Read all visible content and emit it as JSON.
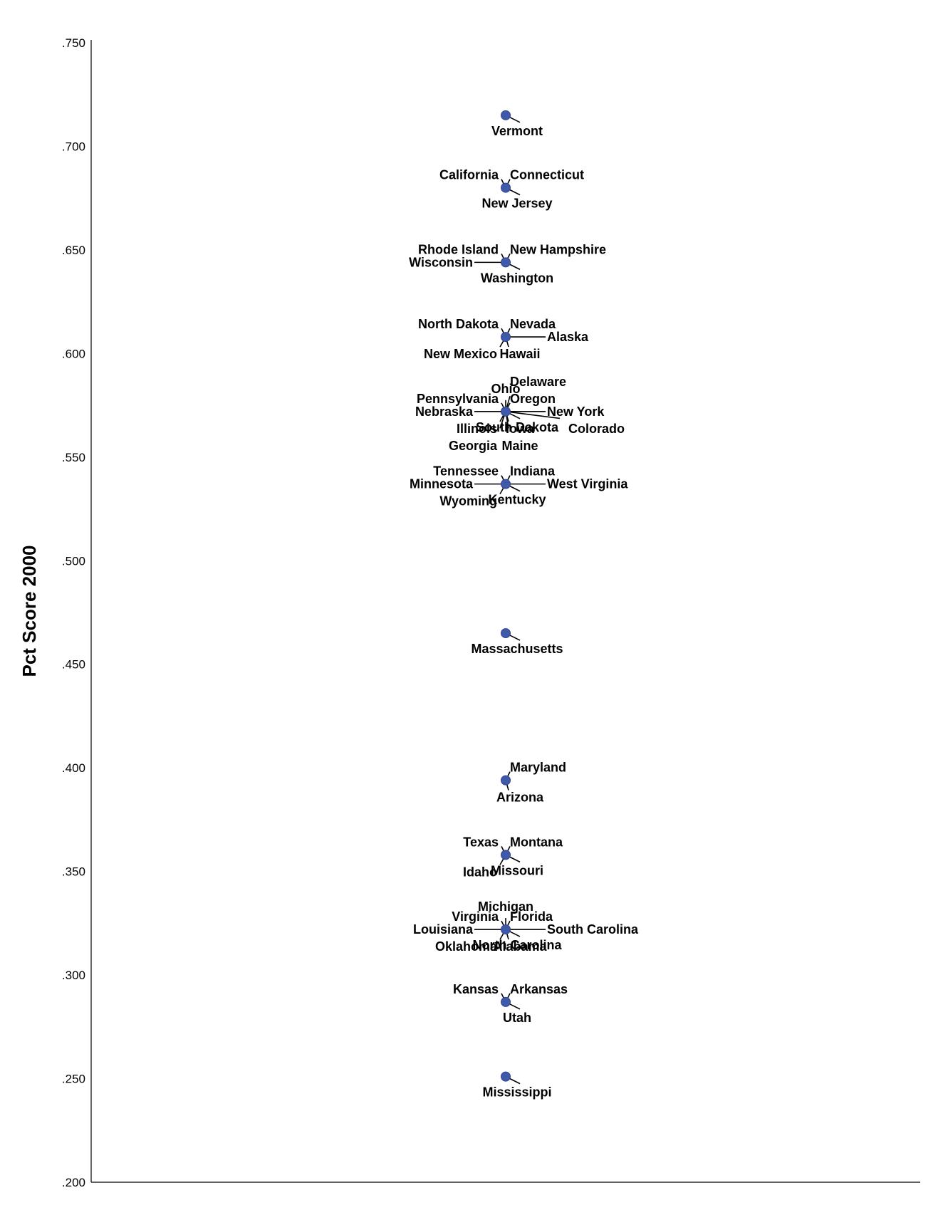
{
  "chart_data": {
    "type": "scatter",
    "title": "",
    "xlabel": "",
    "ylabel": "Pct Score 2000",
    "ylim": [
      0.2,
      0.75
    ],
    "yticks": [
      ".750",
      ".700",
      ".650",
      ".600",
      ".550",
      ".500",
      ".450",
      ".400",
      ".350",
      ".300",
      ".250",
      ".200"
    ],
    "grid": false,
    "marker_color": "#3f5aa8",
    "points": [
      {
        "y": 0.715,
        "labels": [
          {
            "text": "Vermont",
            "pos": "br"
          }
        ]
      },
      {
        "y": 0.68,
        "labels": [
          {
            "text": "California",
            "pos": "tl"
          },
          {
            "text": "Connecticut",
            "pos": "tr"
          },
          {
            "text": "New Jersey",
            "pos": "br"
          }
        ]
      },
      {
        "y": 0.644,
        "labels": [
          {
            "text": "Rhode Island",
            "pos": "tl"
          },
          {
            "text": "New Hampshire",
            "pos": "tr"
          },
          {
            "text": "Wisconsin",
            "pos": "l"
          },
          {
            "text": "Washington",
            "pos": "br"
          }
        ]
      },
      {
        "y": 0.608,
        "labels": [
          {
            "text": "North Dakota",
            "pos": "tl"
          },
          {
            "text": "Nevada",
            "pos": "tr"
          },
          {
            "text": "New Mexico",
            "pos": "bl"
          },
          {
            "text": "Hawaii",
            "pos": "b"
          },
          {
            "text": "Alaska",
            "pos": "r"
          }
        ]
      },
      {
        "y": 0.572,
        "labels": [
          {
            "text": "Pennsylvania",
            "pos": "tl"
          },
          {
            "text": "Oregon",
            "pos": "tr"
          },
          {
            "text": "Ohio",
            "pos": "t"
          },
          {
            "text": "Delaware",
            "pos": "tr"
          },
          {
            "text": "New York",
            "pos": "r"
          },
          {
            "text": "Nebraska",
            "pos": "l"
          },
          {
            "text": "Colorado",
            "pos": "r"
          },
          {
            "text": "Illinois",
            "pos": "bl"
          },
          {
            "text": "Georgia",
            "pos": "bl"
          },
          {
            "text": "Iowa",
            "pos": "b"
          },
          {
            "text": "South Dakota",
            "pos": "br"
          },
          {
            "text": "Maine",
            "pos": "b"
          }
        ]
      },
      {
        "y": 0.537,
        "labels": [
          {
            "text": "Tennessee",
            "pos": "tl"
          },
          {
            "text": "Indiana",
            "pos": "tr"
          },
          {
            "text": "Minnesota",
            "pos": "l"
          },
          {
            "text": "West Virginia",
            "pos": "r"
          },
          {
            "text": "Kentucky",
            "pos": "br"
          },
          {
            "text": "Wyoming",
            "pos": "bl"
          }
        ]
      },
      {
        "y": 0.465,
        "labels": [
          {
            "text": "Massachusetts",
            "pos": "br"
          }
        ]
      },
      {
        "y": 0.394,
        "labels": [
          {
            "text": "Maryland",
            "pos": "tr"
          },
          {
            "text": "Arizona",
            "pos": "b"
          }
        ]
      },
      {
        "y": 0.358,
        "labels": [
          {
            "text": "Texas",
            "pos": "tl"
          },
          {
            "text": "Montana",
            "pos": "tr"
          },
          {
            "text": "Idaho",
            "pos": "bl"
          },
          {
            "text": "Missouri",
            "pos": "br"
          }
        ]
      },
      {
        "y": 0.322,
        "labels": [
          {
            "text": "Michigan",
            "pos": "t"
          },
          {
            "text": "Virginia",
            "pos": "tl"
          },
          {
            "text": "Florida",
            "pos": "tr"
          },
          {
            "text": "Louisiana",
            "pos": "l"
          },
          {
            "text": "South Carolina",
            "pos": "r"
          },
          {
            "text": "Alabama",
            "pos": "b"
          },
          {
            "text": "Oklahoma",
            "pos": "bl"
          },
          {
            "text": "North Carolina",
            "pos": "br"
          }
        ]
      },
      {
        "y": 0.287,
        "labels": [
          {
            "text": "Kansas",
            "pos": "tl"
          },
          {
            "text": "Arkansas",
            "pos": "tr"
          },
          {
            "text": "Utah",
            "pos": "br"
          }
        ]
      },
      {
        "y": 0.251,
        "labels": [
          {
            "text": "Mississippi",
            "pos": "br"
          }
        ]
      }
    ]
  }
}
